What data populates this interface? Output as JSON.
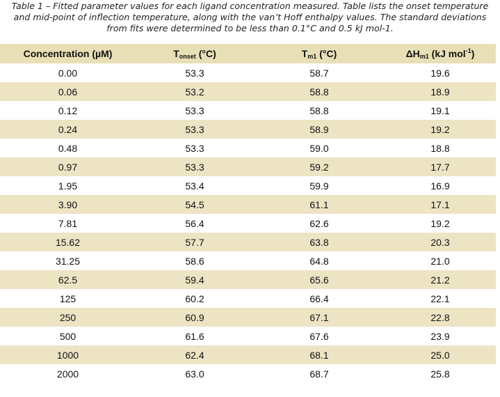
{
  "caption": {
    "label": "Table 1",
    "text": " – Fitted parameter values for each ligand concentration measured. Table lists the onset temperature and mid-point of inflection temperature, along with the van’t Hoff enthalpy values. The standard deviations from fits were determined to be less than 0.1°C and 0.5 kJ mol-1."
  },
  "headers": {
    "concentration": "Concentration (µM)",
    "tonset_main": "T",
    "tonset_sub": "onset",
    "tonset_unit": " (°C)",
    "tm_main": "T",
    "tm_sub": "m1",
    "tm_unit": " (°C)",
    "dh_main": "ΔH",
    "dh_sub": "m1",
    "dh_unit": " (kJ mol",
    "dh_sup": "-1",
    "dh_close": ")"
  },
  "rows": [
    {
      "conc": "0.00",
      "tonset": "53.3",
      "tm": "58.7",
      "dh": "19.6"
    },
    {
      "conc": "0.06",
      "tonset": "53.2",
      "tm": "58.8",
      "dh": "18.9"
    },
    {
      "conc": "0.12",
      "tonset": "53.3",
      "tm": "58.8",
      "dh": "19.1"
    },
    {
      "conc": "0.24",
      "tonset": "53.3",
      "tm": "58.9",
      "dh": "19.2"
    },
    {
      "conc": "0.48",
      "tonset": "53.3",
      "tm": "59.0",
      "dh": "18.8"
    },
    {
      "conc": "0.97",
      "tonset": "53.3",
      "tm": "59.2",
      "dh": "17.7"
    },
    {
      "conc": "1.95",
      "tonset": "53.4",
      "tm": "59.9",
      "dh": "16.9"
    },
    {
      "conc": "3.90",
      "tonset": "54.5",
      "tm": "61.1",
      "dh": "17.1"
    },
    {
      "conc": "7.81",
      "tonset": "56.4",
      "tm": "62.6",
      "dh": "19.2"
    },
    {
      "conc": "15.62",
      "tonset": "57.7",
      "tm": "63.8",
      "dh": "20.3"
    },
    {
      "conc": "31.25",
      "tonset": "58.6",
      "tm": "64.8",
      "dh": "21.0"
    },
    {
      "conc": "62.5",
      "tonset": "59.4",
      "tm": "65.6",
      "dh": "21.2"
    },
    {
      "conc": "125",
      "tonset": "60.2",
      "tm": "66.4",
      "dh": "22.1"
    },
    {
      "conc": "250",
      "tonset": "60.9",
      "tm": "67.1",
      "dh": "22.8"
    },
    {
      "conc": "500",
      "tonset": "61.6",
      "tm": "67.6",
      "dh": "23.9"
    },
    {
      "conc": "1000",
      "tonset": "62.4",
      "tm": "68.1",
      "dh": "25.0"
    },
    {
      "conc": "2000",
      "tonset": "63.0",
      "tm": "68.7",
      "dh": "25.8"
    }
  ],
  "colors": {
    "band": "#ede4c4",
    "header_band": "#e9dfb6",
    "text": "#111111"
  }
}
